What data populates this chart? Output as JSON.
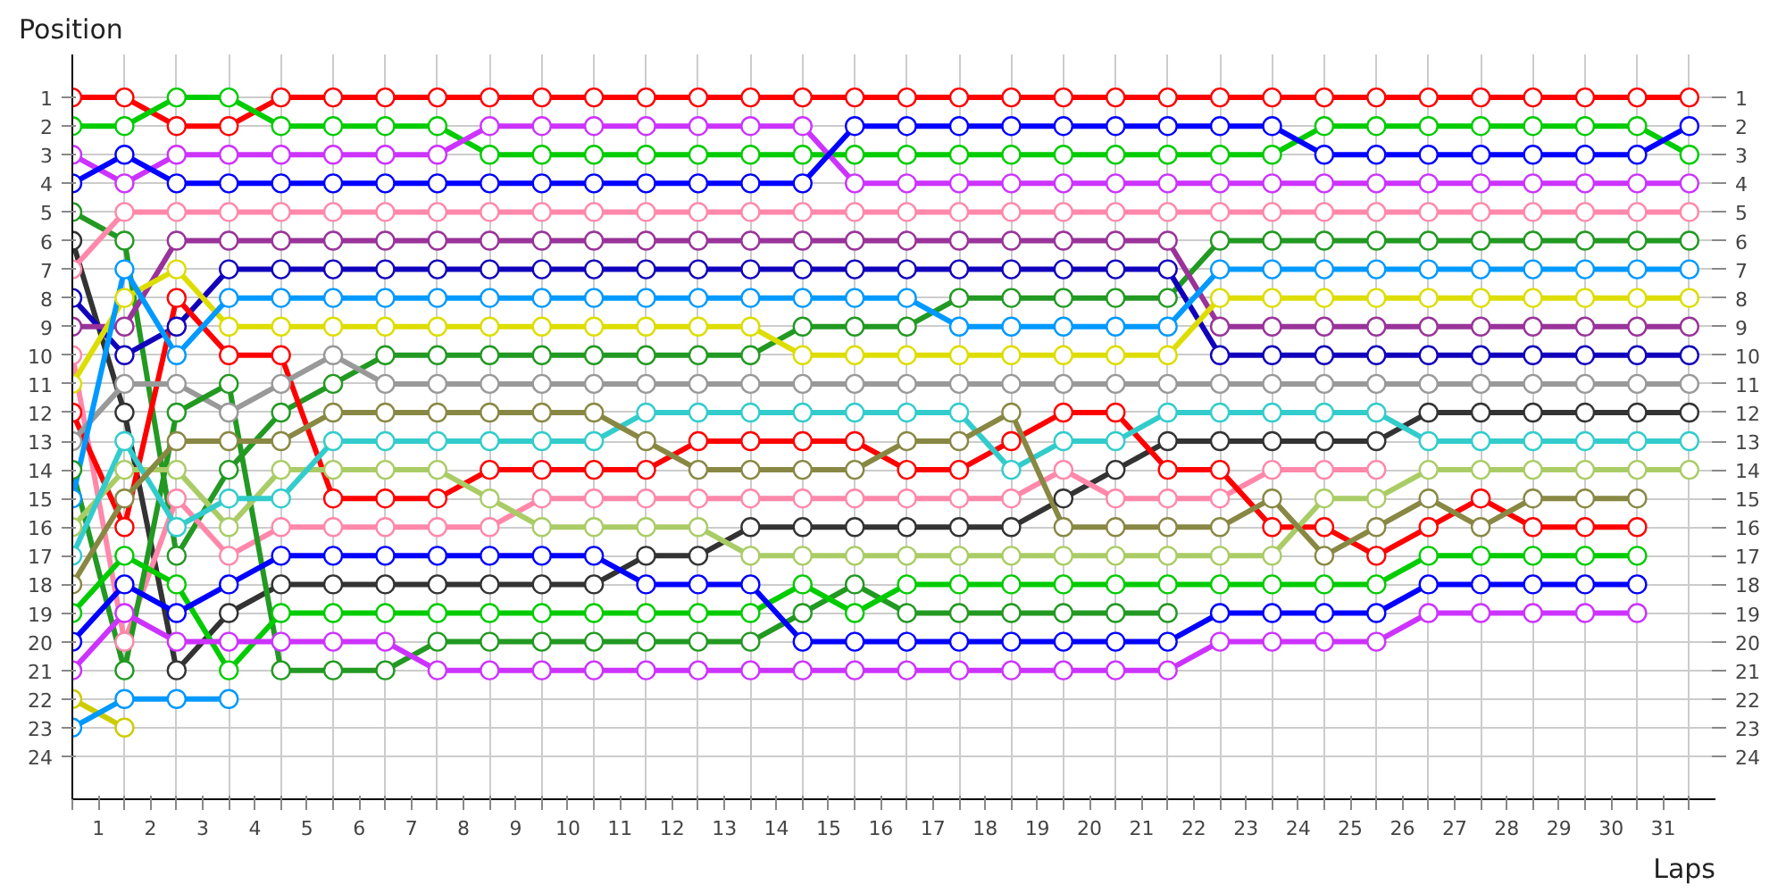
{
  "chart_data": {
    "type": "line",
    "xlabel": "Laps",
    "ylabel": "Position",
    "x": [
      0,
      1,
      2,
      3,
      4,
      5,
      6,
      7,
      8,
      9,
      10,
      11,
      12,
      13,
      14,
      15,
      16,
      17,
      18,
      19,
      20,
      21,
      22,
      23,
      24,
      25,
      26,
      27,
      28,
      29,
      30,
      31
    ],
    "xlim": [
      0,
      31.5
    ],
    "xticks": [
      {
        "value": 0,
        "label": null
      },
      {
        "value": 0.5,
        "label": "1"
      },
      {
        "value": 1,
        "label": null
      },
      {
        "value": 1.5,
        "label": "2"
      },
      {
        "value": 2,
        "label": null
      },
      {
        "value": 2.5,
        "label": "3"
      },
      {
        "value": 3,
        "label": null
      },
      {
        "value": 3.5,
        "label": "4"
      },
      {
        "value": 4,
        "label": null
      },
      {
        "value": 4.5,
        "label": "5"
      },
      {
        "value": 5,
        "label": null
      },
      {
        "value": 5.5,
        "label": "6"
      },
      {
        "value": 6,
        "label": null
      },
      {
        "value": 6.5,
        "label": "7"
      },
      {
        "value": 7,
        "label": null
      },
      {
        "value": 7.5,
        "label": "8"
      },
      {
        "value": 8,
        "label": null
      },
      {
        "value": 8.5,
        "label": "9"
      },
      {
        "value": 9,
        "label": null
      },
      {
        "value": 9.5,
        "label": "10"
      },
      {
        "value": 10,
        "label": null
      },
      {
        "value": 10.5,
        "label": "11"
      },
      {
        "value": 11,
        "label": null
      },
      {
        "value": 11.5,
        "label": "12"
      },
      {
        "value": 12,
        "label": null
      },
      {
        "value": 12.5,
        "label": "13"
      },
      {
        "value": 13,
        "label": null
      },
      {
        "value": 13.5,
        "label": "14"
      },
      {
        "value": 14,
        "label": null
      },
      {
        "value": 14.5,
        "label": "15"
      },
      {
        "value": 15,
        "label": null
      },
      {
        "value": 15.5,
        "label": "16"
      },
      {
        "value": 16,
        "label": null
      },
      {
        "value": 16.5,
        "label": "17"
      },
      {
        "value": 17,
        "label": null
      },
      {
        "value": 17.5,
        "label": "18"
      },
      {
        "value": 18,
        "label": null
      },
      {
        "value": 18.5,
        "label": "19"
      },
      {
        "value": 19,
        "label": null
      },
      {
        "value": 19.5,
        "label": "20"
      },
      {
        "value": 20,
        "label": null
      },
      {
        "value": 20.5,
        "label": "21"
      },
      {
        "value": 21,
        "label": null
      },
      {
        "value": 21.5,
        "label": "22"
      },
      {
        "value": 22,
        "label": null
      },
      {
        "value": 22.5,
        "label": "23"
      },
      {
        "value": 23,
        "label": null
      },
      {
        "value": 23.5,
        "label": "24"
      },
      {
        "value": 24,
        "label": null
      },
      {
        "value": 24.5,
        "label": "25"
      },
      {
        "value": 25,
        "label": null
      },
      {
        "value": 25.5,
        "label": "26"
      },
      {
        "value": 26,
        "label": null
      },
      {
        "value": 26.5,
        "label": "27"
      },
      {
        "value": 27,
        "label": null
      },
      {
        "value": 27.5,
        "label": "28"
      },
      {
        "value": 28,
        "label": null
      },
      {
        "value": 28.5,
        "label": "29"
      },
      {
        "value": 29,
        "label": null
      },
      {
        "value": 29.5,
        "label": "30"
      },
      {
        "value": 30,
        "label": null
      },
      {
        "value": 30.5,
        "label": "31"
      },
      {
        "value": 31,
        "label": null
      }
    ],
    "ylim": [
      25.5,
      -0.5
    ],
    "yticks": [
      1,
      2,
      3,
      4,
      5,
      6,
      7,
      8,
      9,
      10,
      11,
      12,
      13,
      14,
      15,
      16,
      17,
      18,
      19,
      20,
      21,
      22,
      23,
      24
    ],
    "y2lim": [
      25.5,
      -0.5
    ],
    "y2ticks": [
      1,
      2,
      3,
      4,
      5,
      6,
      7,
      8,
      9,
      10,
      11,
      12,
      13,
      14,
      15,
      16,
      17,
      18,
      19,
      20,
      21,
      22,
      23,
      24
    ],
    "grid": true,
    "marker": "circle",
    "line_style": "solid",
    "series": [
      {
        "color": "#ff0000",
        "values": [
          1,
          1,
          2,
          2,
          1,
          1,
          1,
          1,
          1,
          1,
          1,
          1,
          1,
          1,
          1,
          1,
          1,
          1,
          1,
          1,
          1,
          1,
          1,
          1,
          1,
          1,
          1,
          1,
          1,
          1,
          1,
          1
        ]
      },
      {
        "color": "#00cc00",
        "values": [
          2,
          2,
          1,
          1,
          2,
          2,
          2,
          2,
          3,
          3,
          3,
          3,
          3,
          3,
          3,
          3,
          3,
          3,
          3,
          3,
          3,
          3,
          3,
          3,
          2,
          2,
          2,
          2,
          2,
          2,
          2,
          3
        ]
      },
      {
        "color": "#cc33ff",
        "values": [
          3,
          4,
          3,
          3,
          3,
          3,
          3,
          3,
          2,
          2,
          2,
          2,
          2,
          2,
          2,
          4,
          4,
          4,
          4,
          4,
          4,
          4,
          4,
          4,
          4,
          4,
          4,
          4,
          4,
          4,
          4,
          4
        ]
      },
      {
        "color": "#0000ff",
        "values": [
          4,
          3,
          4,
          4,
          4,
          4,
          4,
          4,
          4,
          4,
          4,
          4,
          4,
          4,
          4,
          2,
          2,
          2,
          2,
          2,
          2,
          2,
          2,
          2,
          3,
          3,
          3,
          3,
          3,
          3,
          3,
          2
        ]
      },
      {
        "color": "#229922",
        "values": [
          5,
          6,
          17,
          14,
          12,
          11,
          10,
          10,
          10,
          10,
          10,
          10,
          10,
          10,
          9,
          9,
          9,
          8,
          8,
          8,
          8,
          8,
          6,
          6,
          6,
          6,
          6,
          6,
          6,
          6,
          6,
          6
        ]
      },
      {
        "color": "#333333",
        "values": [
          6,
          12,
          21,
          19,
          18,
          18,
          18,
          18,
          18,
          18,
          18,
          17,
          17,
          16,
          16,
          16,
          16,
          16,
          16,
          15,
          14,
          13,
          13,
          13,
          13,
          13,
          12,
          12,
          12,
          12,
          12,
          12
        ]
      },
      {
        "color": "#ff88aa",
        "values": [
          7,
          5,
          5,
          5,
          5,
          5,
          5,
          5,
          5,
          5,
          5,
          5,
          5,
          5,
          5,
          5,
          5,
          5,
          5,
          5,
          5,
          5,
          5,
          5,
          5,
          5,
          5,
          5,
          5,
          5,
          5,
          5
        ]
      },
      {
        "color": "#1100bb",
        "values": [
          8,
          10,
          9,
          7,
          7,
          7,
          7,
          7,
          7,
          7,
          7,
          7,
          7,
          7,
          7,
          7,
          7,
          7,
          7,
          7,
          7,
          7,
          10,
          10,
          10,
          10,
          10,
          10,
          10,
          10,
          10,
          10
        ]
      },
      {
        "color": "#993399",
        "values": [
          9,
          9,
          6,
          6,
          6,
          6,
          6,
          6,
          6,
          6,
          6,
          6,
          6,
          6,
          6,
          6,
          6,
          6,
          6,
          6,
          6,
          6,
          9,
          9,
          9,
          9,
          9,
          9,
          9,
          9,
          9,
          9
        ]
      },
      {
        "color": "#ff88aa",
        "values": [
          10,
          20,
          15,
          17,
          16,
          16,
          16,
          16,
          16,
          15,
          15,
          15,
          15,
          15,
          15,
          15,
          15,
          15,
          15,
          14,
          15,
          15,
          15,
          14,
          14,
          14,
          null,
          null,
          null,
          null,
          null,
          null
        ]
      },
      {
        "color": "#dddd00",
        "values": [
          11,
          8,
          7,
          9,
          9,
          9,
          9,
          9,
          9,
          9,
          9,
          9,
          9,
          9,
          10,
          10,
          10,
          10,
          10,
          10,
          10,
          10,
          8,
          8,
          8,
          8,
          8,
          8,
          8,
          8,
          8,
          8
        ]
      },
      {
        "color": "#ff0000",
        "values": [
          12,
          16,
          8,
          10,
          10,
          15,
          15,
          15,
          14,
          14,
          14,
          14,
          13,
          13,
          13,
          13,
          14,
          14,
          13,
          12,
          12,
          14,
          14,
          16,
          16,
          17,
          16,
          15,
          16,
          16,
          16,
          null
        ]
      },
      {
        "color": "#999999",
        "values": [
          13,
          11,
          11,
          12,
          11,
          10,
          11,
          11,
          11,
          11,
          11,
          11,
          11,
          11,
          11,
          11,
          11,
          11,
          11,
          11,
          11,
          11,
          11,
          11,
          11,
          11,
          11,
          11,
          11,
          11,
          11,
          11
        ]
      },
      {
        "color": "#229922",
        "values": [
          14,
          21,
          12,
          11,
          21,
          21,
          21,
          20,
          20,
          20,
          20,
          20,
          20,
          20,
          19,
          18,
          19,
          19,
          19,
          19,
          19,
          19,
          null,
          null,
          null,
          null,
          null,
          null,
          null,
          null,
          null,
          null
        ]
      },
      {
        "color": "#0099ff",
        "values": [
          15,
          7,
          10,
          8,
          8,
          8,
          8,
          8,
          8,
          8,
          8,
          8,
          8,
          8,
          8,
          8,
          8,
          9,
          9,
          9,
          9,
          9,
          7,
          7,
          7,
          7,
          7,
          7,
          7,
          7,
          7,
          7
        ]
      },
      {
        "color": "#aacc66",
        "values": [
          16,
          14,
          14,
          16,
          14,
          14,
          14,
          14,
          15,
          16,
          16,
          16,
          16,
          17,
          17,
          17,
          17,
          17,
          17,
          17,
          17,
          17,
          17,
          17,
          15,
          15,
          14,
          14,
          14,
          14,
          14,
          14
        ]
      },
      {
        "color": "#33cccc",
        "values": [
          17,
          13,
          16,
          15,
          15,
          13,
          13,
          13,
          13,
          13,
          13,
          12,
          12,
          12,
          12,
          12,
          12,
          12,
          14,
          13,
          13,
          12,
          12,
          12,
          12,
          12,
          13,
          13,
          13,
          13,
          13,
          13
        ]
      },
      {
        "color": "#888844",
        "values": [
          18,
          15,
          13,
          13,
          13,
          12,
          12,
          12,
          12,
          12,
          12,
          13,
          14,
          14,
          14,
          14,
          13,
          13,
          12,
          16,
          16,
          16,
          16,
          15,
          17,
          16,
          15,
          16,
          15,
          15,
          15,
          null
        ]
      },
      {
        "color": "#00cc00",
        "values": [
          19,
          17,
          18,
          21,
          19,
          19,
          19,
          19,
          19,
          19,
          19,
          19,
          19,
          19,
          18,
          19,
          18,
          18,
          18,
          18,
          18,
          18,
          18,
          18,
          18,
          18,
          17,
          17,
          17,
          17,
          17,
          null
        ]
      },
      {
        "color": "#0000ff",
        "values": [
          20,
          18,
          19,
          18,
          17,
          17,
          17,
          17,
          17,
          17,
          17,
          18,
          18,
          18,
          20,
          20,
          20,
          20,
          20,
          20,
          20,
          20,
          19,
          19,
          19,
          19,
          18,
          18,
          18,
          18,
          18,
          null
        ]
      },
      {
        "color": "#cc33ff",
        "values": [
          21,
          19,
          20,
          20,
          20,
          20,
          20,
          21,
          21,
          21,
          21,
          21,
          21,
          21,
          21,
          21,
          21,
          21,
          21,
          21,
          21,
          21,
          20,
          20,
          20,
          20,
          19,
          19,
          19,
          19,
          19,
          null
        ]
      },
      {
        "color": "#cccc00",
        "values": [
          22,
          23,
          null,
          null,
          null,
          null,
          null,
          null,
          null,
          null,
          null,
          null,
          null,
          null,
          null,
          null,
          null,
          null,
          null,
          null,
          null,
          null,
          null,
          null,
          null,
          null,
          null,
          null,
          null,
          null,
          null,
          null
        ]
      },
      {
        "color": "#0099ff",
        "values": [
          23,
          22,
          22,
          22,
          null,
          null,
          null,
          null,
          null,
          null,
          null,
          null,
          null,
          null,
          null,
          null,
          null,
          null,
          null,
          null,
          null,
          null,
          null,
          null,
          null,
          null,
          null,
          null,
          null,
          null,
          null,
          null
        ]
      }
    ]
  }
}
